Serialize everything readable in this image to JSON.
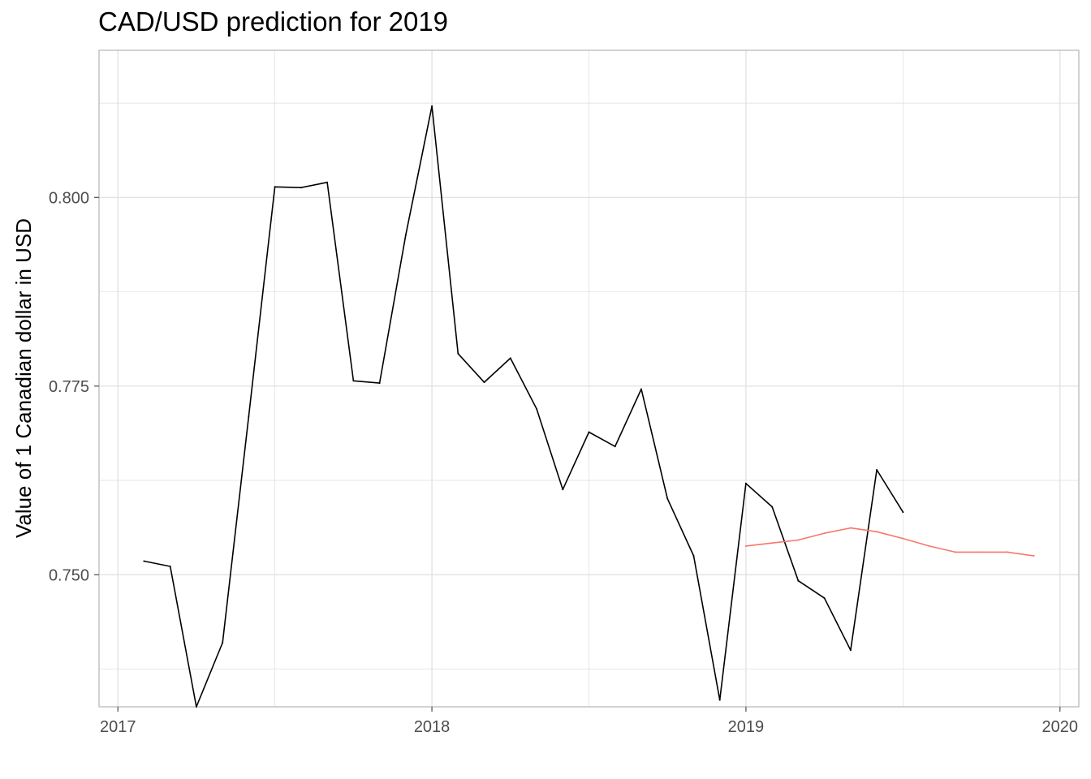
{
  "chart_data": {
    "type": "line",
    "title": "CAD/USD prediction for 2019",
    "xlabel": "",
    "ylabel": "Value of 1 Canadian dollar in USD",
    "xlim": [
      2016.94,
      2020.06
    ],
    "ylim": [
      0.7325,
      0.8195
    ],
    "x_ticks": [
      2017,
      2018,
      2019,
      2020
    ],
    "x_tick_labels": [
      "2017",
      "2018",
      "2019",
      "2020"
    ],
    "y_ticks": [
      0.75,
      0.775,
      0.8
    ],
    "y_tick_labels": [
      "0.750",
      "0.775",
      "0.800"
    ],
    "grid": true,
    "colors": {
      "actual": "#000000",
      "forecast": "#F8766D",
      "grid": "#DEDEDE",
      "panel_border": "#B3B3B3"
    },
    "series": [
      {
        "key": "actual",
        "x": [
          "2017-02",
          "2017-03",
          "2017-04",
          "2017-05",
          "2017-06",
          "2017-07",
          "2017-08",
          "2017-09",
          "2017-10",
          "2017-11",
          "2017-12",
          "2018-01",
          "2018-02",
          "2018-03",
          "2018-04",
          "2018-05",
          "2018-06",
          "2018-07",
          "2018-08",
          "2018-09",
          "2018-10",
          "2018-11",
          "2018-12",
          "2019-01",
          "2019-02",
          "2019-03",
          "2019-04",
          "2019-05",
          "2019-06",
          "2019-07"
        ],
        "values": [
          0.7518,
          0.7511,
          0.7325,
          0.741,
          0.771,
          0.8014,
          0.8013,
          0.802,
          0.7757,
          0.7754,
          0.795,
          0.8121,
          0.7793,
          0.7755,
          0.7787,
          0.772,
          0.7613,
          0.7689,
          0.767,
          0.7746,
          0.7601,
          0.7525,
          0.7334,
          0.7621,
          0.759,
          0.7492,
          0.7469,
          0.74,
          0.7639,
          0.7583
        ]
      },
      {
        "key": "forecast",
        "x": [
          "2019-01",
          "2019-02",
          "2019-03",
          "2019-04",
          "2019-05",
          "2019-06",
          "2019-07",
          "2019-08",
          "2019-09",
          "2019-10",
          "2019-11",
          "2019-12"
        ],
        "values": [
          0.7538,
          0.7542,
          0.7546,
          0.7555,
          0.7562,
          0.7557,
          0.7548,
          0.7538,
          0.753,
          0.753,
          0.753,
          0.7525
        ]
      }
    ]
  }
}
